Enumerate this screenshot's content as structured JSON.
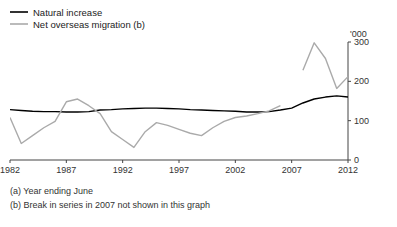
{
  "chart_data": {
    "type": "line",
    "y_label": "'000",
    "annotations": [
      "(a) Year ending June",
      "(b) Break in series in 2007 not shown in this graph"
    ],
    "x": [
      1982,
      1983,
      1984,
      1985,
      1986,
      1987,
      1988,
      1989,
      1990,
      1991,
      1992,
      1993,
      1994,
      1995,
      1996,
      1997,
      1998,
      1999,
      2000,
      2001,
      2002,
      2003,
      2004,
      2005,
      2006,
      2007,
      2008,
      2009,
      2010,
      2011,
      2012
    ],
    "series": [
      {
        "name": "Natural increase",
        "color": "#000000",
        "values": [
          128,
          126,
          124,
          123,
          123,
          122,
          122,
          123,
          127,
          128,
          130,
          131,
          132,
          132,
          131,
          130,
          128,
          127,
          126,
          125,
          124,
          122,
          122,
          123,
          127,
          132,
          145,
          155,
          160,
          163,
          160
        ]
      },
      {
        "name": "Net overseas migration (b)",
        "color": "#aaaaaa",
        "values": [
          108,
          42,
          62,
          82,
          98,
          148,
          155,
          138,
          118,
          72,
          52,
          32,
          72,
          95,
          88,
          78,
          68,
          62,
          82,
          98,
          108,
          112,
          118,
          125,
          138,
          null,
          228,
          298,
          258,
          182,
          212
        ]
      }
    ],
    "xlim": [
      1982,
      2012
    ],
    "ylim": [
      0,
      300
    ],
    "xticks": [
      1982,
      1987,
      1992,
      1997,
      2002,
      2007,
      2012
    ],
    "yticks": [
      0,
      100,
      200,
      300
    ],
    "legend": "top"
  }
}
